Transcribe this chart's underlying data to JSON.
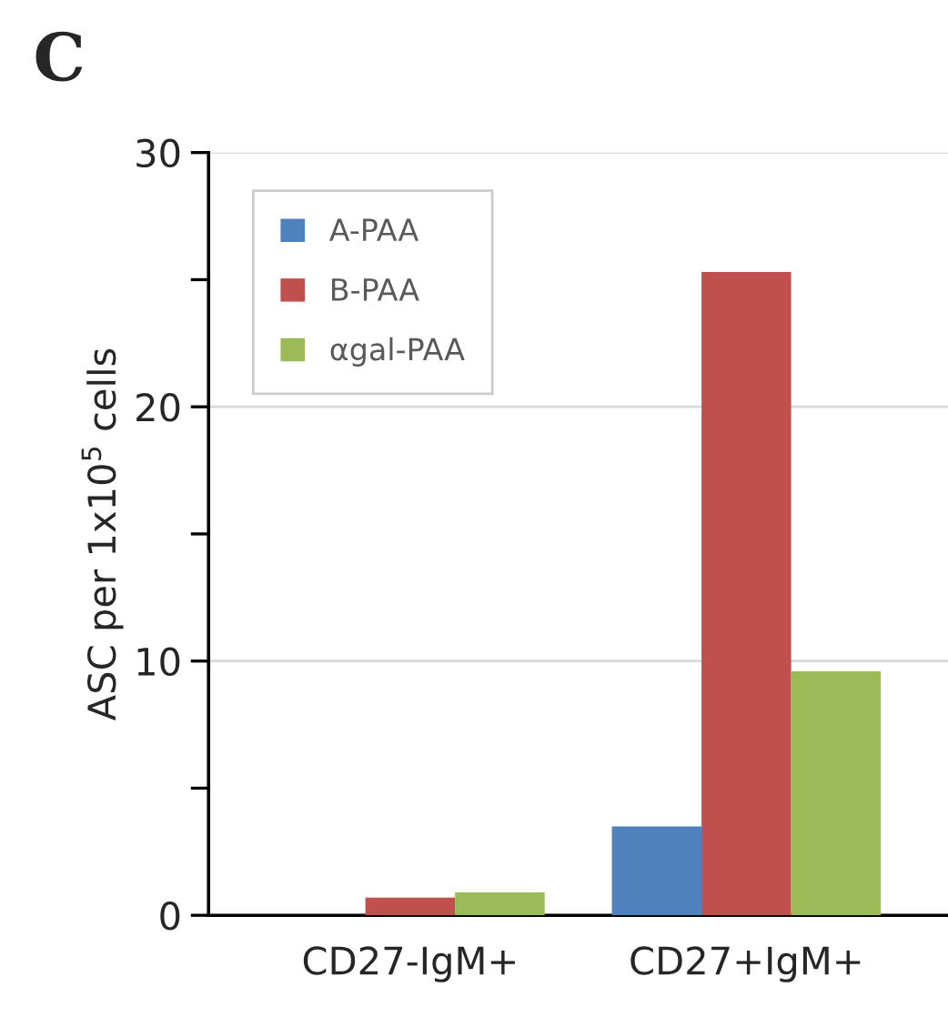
{
  "chart_data": {
    "type": "bar",
    "title": "C",
    "ylabel": "ASC per 1x10$^{5}$ cells",
    "categories": [
      "CD27-IgM+",
      "CD27+IgM+"
    ],
    "series": [
      {
        "name": "A-PAA",
        "color": "#4f81bd",
        "values": [
          0,
          3.5
        ]
      },
      {
        "name": "B-PAA",
        "color": "#c0504d",
        "values": [
          0.7,
          25.3
        ]
      },
      {
        "name": "αgal-PAA",
        "color": "#9bbb59",
        "values": [
          0.9,
          9.6
        ]
      }
    ],
    "ylim": [
      0,
      30
    ],
    "yticks": [
      0,
      {
        "value": 5,
        "label": null
      },
      10,
      {
        "value": 15,
        "label": null
      },
      20,
      {
        "value": 25,
        "label": null
      },
      30
    ],
    "grid": "y",
    "legend": "top left"
  }
}
